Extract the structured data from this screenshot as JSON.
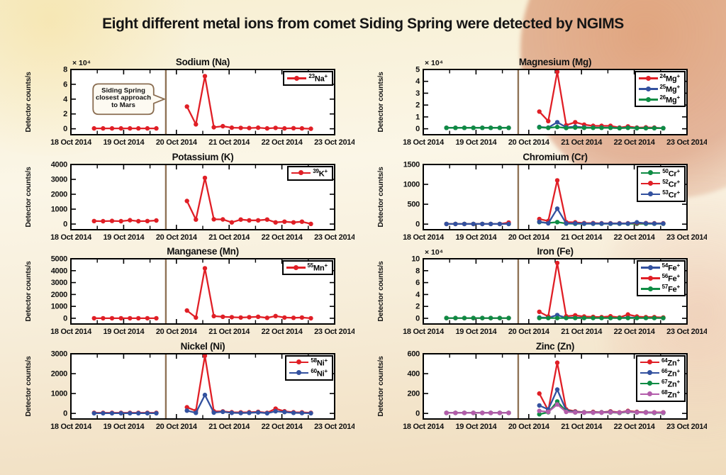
{
  "title": "Eight different metal ions from comet Siding Spring were detected by NGIMS",
  "colors": {
    "red": "#e01f26",
    "blue": "#33519f",
    "green": "#0e8c44",
    "magenta": "#b35cab",
    "event_line": "#8f7356",
    "annotation": "#8a6d51",
    "axes": "#000000",
    "plot_bg": "#ffffff"
  },
  "chart_data": {
    "type": "line",
    "ylabel": "Detector counts/s",
    "x_axis": {
      "lim": [
        18,
        23
      ],
      "major_ticks": [
        18,
        19,
        20,
        21,
        22,
        23
      ],
      "minor_ticks": [
        18.5,
        19.5,
        20.5,
        21.5,
        22.5
      ],
      "labels": [
        "18 Oct 2014",
        "19 Oct 2014",
        "20 Oct 2014",
        "21 Oct 2014",
        "22 Oct 2014",
        "23 Oct 2014"
      ]
    },
    "event_line": {
      "x": 19.8
    },
    "x_pre": [
      18.44,
      18.61,
      18.78,
      18.95,
      19.12,
      19.28,
      19.45,
      19.62
    ],
    "x_post": [
      20.2,
      20.37,
      20.54,
      20.71,
      20.88,
      21.05,
      21.22,
      21.38,
      21.55,
      21.72,
      21.88,
      22.05,
      22.22,
      22.38,
      22.55
    ],
    "charts": [
      {
        "title": "Sodium (Na)",
        "y_exponent": "× 10⁴",
        "ytick_values": [
          0,
          2,
          4,
          6,
          8
        ],
        "ytick_labels": [
          "0",
          "2",
          "4",
          "6",
          "8"
        ],
        "ylim": [
          -0.8,
          8
        ],
        "annotation": {
          "lines": [
            "Siding Spring",
            "closest approach",
            "to Mars"
          ]
        },
        "series": [
          {
            "isotope": "23",
            "symbol": "Na",
            "charge": "+",
            "color": "#e01f26",
            "pre": [
              0.05,
              0.05,
              0.05,
              0.05,
              0.05,
              0.05,
              0.05,
              0.05
            ],
            "post": [
              3.0,
              0.6,
              7.1,
              0.2,
              0.35,
              0.15,
              0.12,
              0.1,
              0.15,
              0.05,
              0.12,
              0.05,
              0.08,
              0.05,
              0.0
            ]
          }
        ]
      },
      {
        "title": "Magnesium (Mg)",
        "y_exponent": "× 10⁴",
        "ytick_values": [
          0,
          1,
          2,
          3,
          4,
          5
        ],
        "ytick_labels": [
          "0",
          "1",
          "2",
          "3",
          "4",
          "5"
        ],
        "ylim": [
          -0.5,
          5
        ],
        "annotation": null,
        "series": [
          {
            "isotope": "24",
            "symbol": "Mg",
            "charge": "+",
            "color": "#e01f26",
            "pre": [
              0.08,
              0.08,
              0.08,
              0.08,
              0.08,
              0.08,
              0.08,
              0.08
            ],
            "post": [
              1.45,
              0.65,
              4.8,
              0.3,
              0.55,
              0.35,
              0.25,
              0.25,
              0.25,
              0.1,
              0.2,
              0.1,
              0.12,
              0.1,
              0.05
            ]
          },
          {
            "isotope": "25",
            "symbol": "Mg",
            "charge": "+",
            "color": "#33519f",
            "pre": [
              0.08,
              0.08,
              0.08,
              0.08,
              0.08,
              0.08,
              0.08,
              0.08
            ],
            "post": [
              0.15,
              0.1,
              0.55,
              0.12,
              0.18,
              0.12,
              0.1,
              0.1,
              0.1,
              0.06,
              0.1,
              0.06,
              0.06,
              0.06,
              0.05
            ]
          },
          {
            "isotope": "26",
            "symbol": "Mg",
            "charge": "+",
            "color": "#0e8c44",
            "pre": [
              0.08,
              0.08,
              0.08,
              0.08,
              0.08,
              0.08,
              0.08,
              0.08
            ],
            "post": [
              0.12,
              0.08,
              0.15,
              0.06,
              0.1,
              0.08,
              0.08,
              0.08,
              0.08,
              0.05,
              0.08,
              0.05,
              0.05,
              0.05,
              0.05
            ]
          }
        ]
      },
      {
        "title": "Potassium (K)",
        "y_exponent": null,
        "ytick_values": [
          0,
          1000,
          2000,
          3000,
          4000
        ],
        "ytick_labels": [
          "0",
          "1000",
          "2000",
          "3000",
          "4000"
        ],
        "ylim": [
          -380,
          4000
        ],
        "annotation": null,
        "series": [
          {
            "isotope": "39",
            "symbol": "K",
            "charge": "+",
            "color": "#e01f26",
            "pre": [
              200,
              190,
              210,
              190,
              260,
              190,
              200,
              240
            ],
            "post": [
              1550,
              300,
              3100,
              320,
              310,
              110,
              300,
              250,
              250,
              300,
              110,
              160,
              110,
              160,
              10
            ]
          }
        ]
      },
      {
        "title": "Chromium (Cr)",
        "y_exponent": null,
        "ytick_values": [
          0,
          500,
          1000,
          1500
        ],
        "ytick_labels": [
          "0",
          "500",
          "1000",
          "1500"
        ],
        "ylim": [
          -140,
          1500
        ],
        "annotation": null,
        "series": [
          {
            "isotope": "50",
            "symbol": "Cr",
            "charge": "+",
            "color": "#0e8c44",
            "pre": [
              5,
              5,
              5,
              5,
              5,
              5,
              5,
              5
            ],
            "post": [
              50,
              30,
              50,
              15,
              10,
              10,
              10,
              10,
              10,
              10,
              10,
              10,
              10,
              10,
              10
            ]
          },
          {
            "isotope": "52",
            "symbol": "Cr",
            "charge": "+",
            "color": "#e01f26",
            "pre": [
              5,
              5,
              5,
              5,
              5,
              5,
              5,
              40
            ],
            "post": [
              130,
              80,
              1100,
              50,
              45,
              25,
              25,
              20,
              20,
              20,
              20,
              30,
              25,
              20,
              20
            ]
          },
          {
            "isotope": "53",
            "symbol": "Cr",
            "charge": "+",
            "color": "#33519f",
            "pre": [
              5,
              5,
              5,
              5,
              5,
              5,
              5,
              5
            ],
            "post": [
              60,
              20,
              390,
              20,
              20,
              15,
              15,
              15,
              15,
              15,
              15,
              45,
              20,
              15,
              15
            ]
          }
        ]
      },
      {
        "title": "Manganese (Mn)",
        "y_exponent": null,
        "ytick_values": [
          0,
          1000,
          2000,
          3000,
          4000,
          5000
        ],
        "ytick_labels": [
          "0",
          "1000",
          "2000",
          "3000",
          "4000",
          "5000"
        ],
        "ylim": [
          -480,
          5000
        ],
        "annotation": null,
        "series": [
          {
            "isotope": "55",
            "symbol": "Mn",
            "charge": "+",
            "color": "#e01f26",
            "pre": [
              0,
              0,
              0,
              0,
              0,
              0,
              0,
              0
            ],
            "post": [
              650,
              60,
              4200,
              180,
              130,
              90,
              60,
              90,
              130,
              40,
              190,
              60,
              40,
              60,
              0
            ]
          }
        ]
      },
      {
        "title": "Iron (Fe)",
        "y_exponent": "× 10⁴",
        "ytick_values": [
          0,
          2,
          4,
          6,
          8,
          10
        ],
        "ytick_labels": [
          "0",
          "2",
          "4",
          "6",
          "8",
          "10"
        ],
        "ylim": [
          -0.95,
          10
        ],
        "annotation": null,
        "series": [
          {
            "isotope": "54",
            "symbol": "Fe",
            "charge": "+",
            "color": "#33519f",
            "pre": [
              0.05,
              0.05,
              0.05,
              0.05,
              0.05,
              0.05,
              0.05,
              0.05
            ],
            "post": [
              0.15,
              0.1,
              0.55,
              0.1,
              0.12,
              0.08,
              0.08,
              0.08,
              0.1,
              0.05,
              0.15,
              0.1,
              0.08,
              0.08,
              0.05
            ]
          },
          {
            "isotope": "56",
            "symbol": "Fe",
            "charge": "+",
            "color": "#e01f26",
            "pre": [
              0.05,
              0.05,
              0.05,
              0.05,
              0.05,
              0.05,
              0.05,
              0.05
            ],
            "post": [
              1.1,
              0.3,
              9.3,
              0.35,
              0.5,
              0.3,
              0.25,
              0.2,
              0.35,
              0.15,
              0.65,
              0.3,
              0.2,
              0.2,
              0.15
            ]
          },
          {
            "isotope": "57",
            "symbol": "Fe",
            "charge": "+",
            "color": "#0e8c44",
            "pre": [
              0.05,
              0.05,
              0.05,
              0.05,
              0.05,
              0.05,
              0.05,
              0.05
            ],
            "post": [
              0.05,
              0.05,
              0.05,
              0.05,
              0.05,
              0.05,
              0.05,
              0.05,
              0.05,
              0.05,
              0.05,
              0.05,
              0.05,
              0.05,
              0.05
            ]
          }
        ]
      },
      {
        "title": "Nickel (Ni)",
        "y_exponent": null,
        "ytick_values": [
          0,
          1000,
          2000,
          3000
        ],
        "ytick_labels": [
          "0",
          "1000",
          "2000",
          "3000"
        ],
        "ylim": [
          -280,
          3000
        ],
        "annotation": null,
        "series": [
          {
            "isotope": "58",
            "symbol": "Ni",
            "charge": "+",
            "color": "#e01f26",
            "pre": [
              30,
              30,
              30,
              30,
              30,
              30,
              30,
              30
            ],
            "post": [
              310,
              130,
              2900,
              110,
              100,
              60,
              50,
              60,
              80,
              30,
              240,
              110,
              60,
              50,
              30
            ]
          },
          {
            "isotope": "60",
            "symbol": "Ni",
            "charge": "+",
            "color": "#33519f",
            "pre": [
              10,
              10,
              10,
              10,
              10,
              10,
              10,
              10
            ],
            "post": [
              140,
              30,
              930,
              40,
              80,
              30,
              20,
              30,
              50,
              10,
              110,
              70,
              30,
              20,
              10
            ]
          }
        ]
      },
      {
        "title": "Zinc (Zn)",
        "y_exponent": null,
        "ytick_values": [
          0,
          200,
          400,
          600
        ],
        "ytick_labels": [
          "0",
          "200",
          "400",
          "600"
        ],
        "ylim": [
          -56,
          600
        ],
        "annotation": null,
        "series": [
          {
            "isotope": "64",
            "symbol": "Zn",
            "charge": "+",
            "color": "#e01f26",
            "pre": [
              5,
              5,
              5,
              5,
              5,
              5,
              5,
              5
            ],
            "post": [
              200,
              30,
              510,
              40,
              20,
              12,
              15,
              12,
              20,
              10,
              25,
              15,
              12,
              10,
              10
            ]
          },
          {
            "isotope": "66",
            "symbol": "Zn",
            "charge": "+",
            "color": "#33519f",
            "pre": [
              5,
              5,
              5,
              5,
              5,
              5,
              5,
              5
            ],
            "post": [
              80,
              40,
              240,
              30,
              15,
              10,
              10,
              10,
              15,
              8,
              20,
              12,
              10,
              8,
              8
            ]
          },
          {
            "isotope": "67",
            "symbol": "Zn",
            "charge": "+",
            "color": "#0e8c44",
            "pre": [
              5,
              5,
              5,
              5,
              5,
              5,
              5,
              5
            ],
            "post": [
              -8,
              12,
              120,
              20,
              10,
              8,
              8,
              8,
              10,
              6,
              15,
              10,
              8,
              6,
              6
            ]
          },
          {
            "isotope": "68",
            "symbol": "Zn",
            "charge": "+",
            "color": "#b35cab",
            "pre": [
              5,
              5,
              5,
              5,
              5,
              5,
              5,
              5
            ],
            "post": [
              25,
              15,
              90,
              15,
              10,
              8,
              8,
              8,
              12,
              8,
              18,
              10,
              8,
              8,
              8
            ]
          }
        ]
      }
    ]
  }
}
